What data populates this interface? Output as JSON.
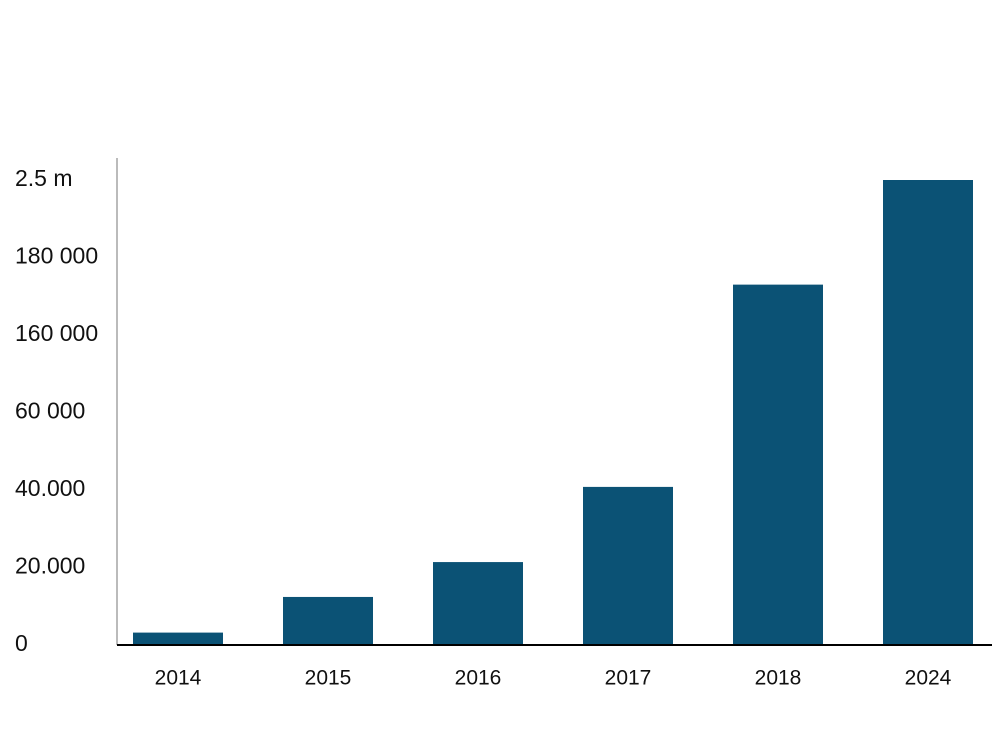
{
  "chart_data": {
    "type": "bar",
    "categories": [
      "2014",
      "2015",
      "2016",
      "2017",
      "2018",
      "2024"
    ],
    "values": [
      3200,
      12400,
      21400,
      40800,
      173000,
      2500000
    ],
    "color": "#0b5275",
    "ylim": [
      0,
      2500000
    ],
    "yticks": [
      0,
      {
        "value": 20000,
        "label": "20.000"
      },
      {
        "value": 40000,
        "label": "40.000"
      },
      {
        "value": 60000,
        "label": "60 000"
      },
      {
        "value": 160000,
        "label": "160 000"
      },
      {
        "value": 180000,
        "label": "180 000"
      },
      {
        "value": 2500000,
        "label": "2.5 m"
      }
    ],
    "grid": false
  }
}
